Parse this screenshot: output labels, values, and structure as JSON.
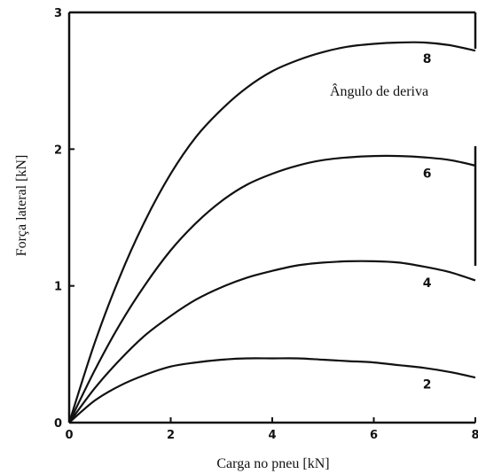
{
  "chart_data": {
    "type": "line",
    "title": "",
    "xlabel": "Carga no pneu [kN]",
    "ylabel": "Força lateral [kN]",
    "legend_title": "Ângulo de deriva",
    "xlim": [
      0,
      8
    ],
    "ylim": [
      0,
      3
    ],
    "xticks": [
      0,
      2,
      4,
      6,
      8
    ],
    "yticks": [
      0,
      1,
      2,
      3
    ],
    "xtick_labels": [
      "0",
      "2",
      "4",
      "6",
      "8"
    ],
    "ytick_labels": [
      "0",
      "1",
      "2",
      "3"
    ],
    "grid": false,
    "x": [
      0,
      0.5,
      1,
      1.5,
      2,
      2.5,
      3,
      3.5,
      4,
      4.5,
      5,
      5.5,
      6,
      6.5,
      7,
      7.5,
      8
    ],
    "series": [
      {
        "name": "2",
        "values": [
          0,
          0.16,
          0.27,
          0.35,
          0.41,
          0.44,
          0.46,
          0.47,
          0.47,
          0.47,
          0.46,
          0.45,
          0.44,
          0.42,
          0.4,
          0.37,
          0.33
        ]
      },
      {
        "name": "4",
        "values": [
          0,
          0.25,
          0.46,
          0.64,
          0.78,
          0.9,
          0.99,
          1.06,
          1.11,
          1.15,
          1.17,
          1.18,
          1.18,
          1.17,
          1.14,
          1.1,
          1.04
        ]
      },
      {
        "name": "6",
        "values": [
          0,
          0.38,
          0.72,
          1.01,
          1.26,
          1.46,
          1.62,
          1.74,
          1.82,
          1.88,
          1.92,
          1.94,
          1.95,
          1.95,
          1.94,
          1.92,
          1.88
        ]
      },
      {
        "name": "8",
        "values": [
          0,
          0.58,
          1.07,
          1.48,
          1.82,
          2.09,
          2.29,
          2.45,
          2.57,
          2.65,
          2.71,
          2.75,
          2.77,
          2.78,
          2.78,
          2.76,
          2.72
        ]
      }
    ]
  },
  "colors": {
    "line": "#111111",
    "background": "#ffffff"
  }
}
